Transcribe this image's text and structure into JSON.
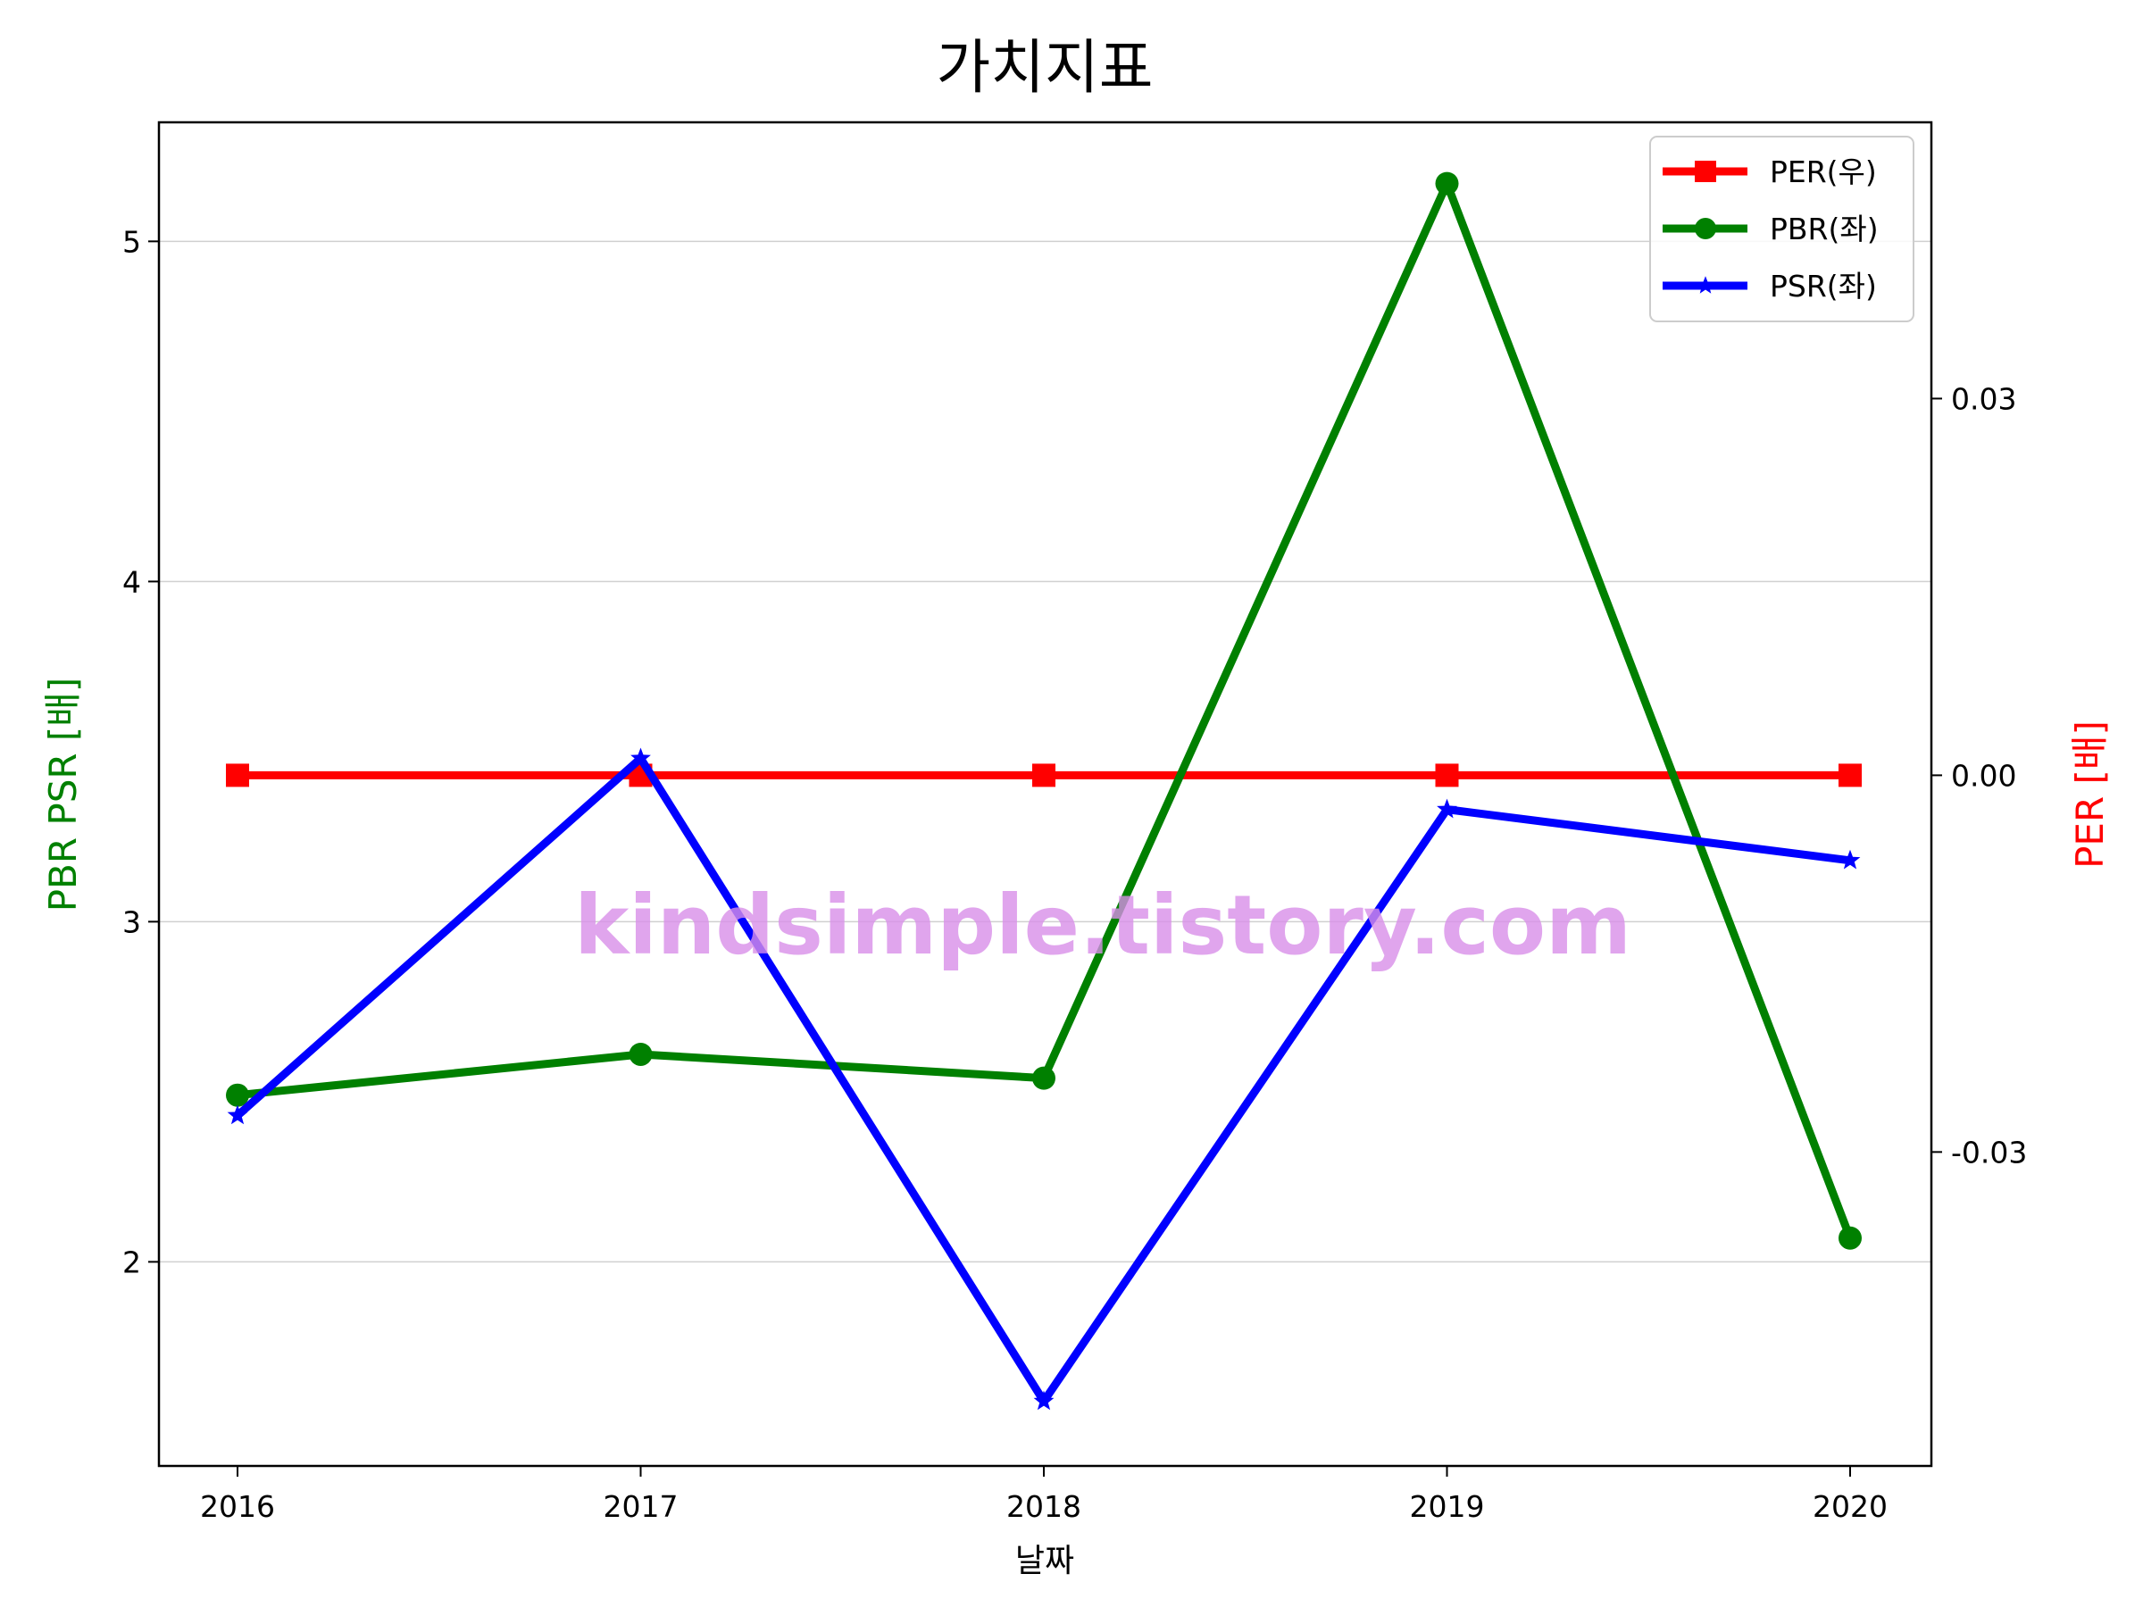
{
  "chart_data": {
    "type": "line",
    "title": "가치지표",
    "xlabel": "날짜",
    "ylabel_left": "PBR PSR [배]",
    "ylabel_right": "PER [배]",
    "categories": [
      "2016",
      "2017",
      "2018",
      "2019",
      "2020"
    ],
    "left_axis": {
      "range": [
        1.4,
        5.35
      ],
      "ticks": [
        2,
        3,
        4,
        5
      ],
      "tick_labels": [
        "2",
        "3",
        "4",
        "5"
      ]
    },
    "right_axis": {
      "range": [
        -0.055,
        0.052
      ],
      "ticks": [
        -0.03,
        0.0,
        0.03
      ],
      "tick_labels": [
        "-0.03",
        "0.00",
        "0.03"
      ]
    },
    "grid": "horizontal",
    "legend_position": "top-right",
    "series": [
      {
        "name": "PER(우)",
        "axis": "right",
        "color": "#ff0000",
        "marker": "square",
        "values": [
          0,
          0,
          0,
          0,
          0
        ]
      },
      {
        "name": "PBR(좌)",
        "axis": "left",
        "color": "#008000",
        "marker": "circle",
        "values": [
          2.49,
          2.61,
          2.54,
          5.17,
          2.07
        ]
      },
      {
        "name": "PSR(좌)",
        "axis": "left",
        "color": "#0000ff",
        "marker": "star",
        "values": [
          2.43,
          3.48,
          1.59,
          3.33,
          3.18
        ]
      }
    ],
    "watermark": "kindsimple.tistory.com"
  }
}
